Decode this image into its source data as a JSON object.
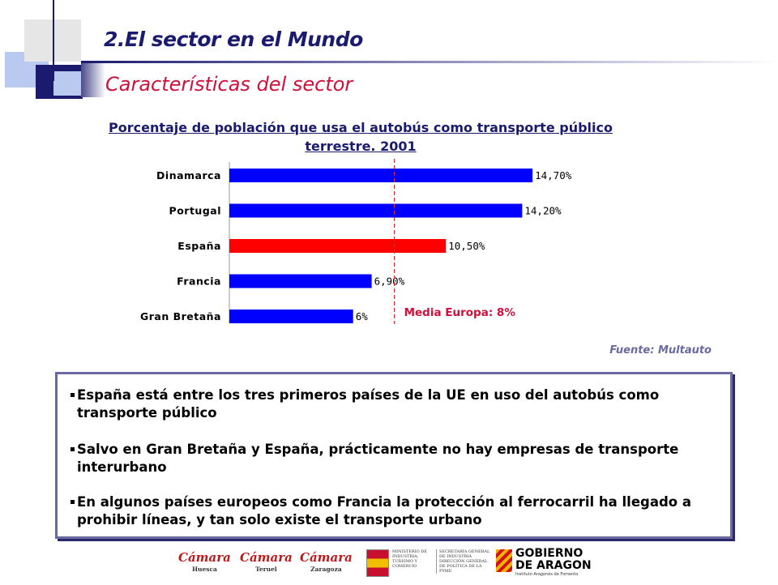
{
  "header": {
    "title": "2.El sector en el Mundo",
    "subtitle": "Características del sector"
  },
  "colors": {
    "navy": "#1a1a6e",
    "accent_red": "#d0103a",
    "bar_blue": "#0000ff",
    "bar_red": "#ff0000",
    "reference_line": "#d03030"
  },
  "chart_data": {
    "type": "bar",
    "orientation": "horizontal",
    "title": "Porcentaje de población que usa el autobús como transporte público terrestre. 2001",
    "categories": [
      "Dinamarca",
      "Portugal",
      "España",
      "Francia",
      "Gran Bretaña"
    ],
    "values": [
      14.7,
      14.2,
      10.5,
      6.9,
      6
    ],
    "value_labels": [
      "14,70%",
      "14,20%",
      "10,50%",
      "6,90%",
      "6%"
    ],
    "bar_colors": [
      "#0000ff",
      "#0000ff",
      "#ff0000",
      "#0000ff",
      "#0000ff"
    ],
    "reference_line": {
      "value": 8,
      "label": "Media Europa: 8%"
    },
    "grid": false,
    "legend": "none"
  },
  "source": "Fuente: Multauto",
  "bullets": [
    "España está entre los tres primeros países de la UE en uso del autobús como transporte público",
    "Salvo en Gran Bretaña y España, prácticamente no hay empresas de transporte interurbano",
    "En algunos países europeos como Francia la protección al ferrocarril ha llegado a prohibir líneas, y tan solo existe el transporte urbano"
  ],
  "footer_logos": {
    "camara_huesca": {
      "name": "Cámara",
      "city": "Huesca"
    },
    "camara_teruel": {
      "name": "Cámara",
      "city": "Teruel"
    },
    "camara_zaragoza": {
      "name": "Cámara",
      "city": "Zaragoza"
    },
    "ministerio": {
      "left": "MINISTERIO DE INDUSTRIA, TURISMO Y COMERCIO",
      "right": "SECRETARÍA GENERAL DE INDUSTRIA DIRECCIÓN GENERAL DE POLÍTICA DE LA PYME"
    },
    "aragon": {
      "line1": "GOBIERNO",
      "line2": "DE ARAGON",
      "sub": "Instituto Aragonés de Fomento"
    }
  }
}
